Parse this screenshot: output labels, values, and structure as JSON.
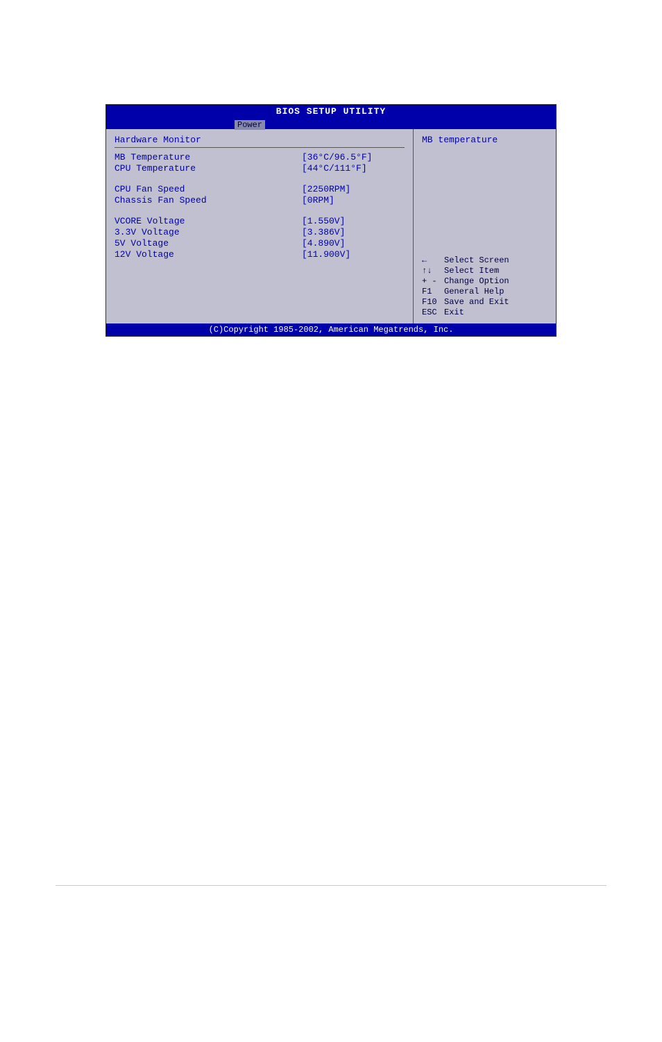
{
  "header": {
    "title": "BIOS SETUP UTILITY",
    "tab": "Power"
  },
  "leftPanel": {
    "sectionTitle": "Hardware Monitor",
    "rows": [
      {
        "label": "MB Temperature",
        "value": "[36°C/96.5°F]"
      },
      {
        "label": "CPU Temperature",
        "value": "[44°C/111°F]"
      }
    ],
    "rows2": [
      {
        "label": "CPU Fan Speed",
        "value": "[2250RPM]"
      },
      {
        "label": "Chassis Fan Speed",
        "value": "[0RPM]"
      }
    ],
    "rows3": [
      {
        "label": "VCORE Voltage",
        "value": "[1.550V]"
      },
      {
        "label": "3.3V Voltage",
        "value": "[3.386V]"
      },
      {
        "label": "5V Voltage",
        "value": "[4.890V]"
      },
      {
        "label": "12V Voltage",
        "value": "[11.900V]"
      }
    ]
  },
  "rightPanel": {
    "helpText": "MB temperature",
    "keys": [
      {
        "icon": "←",
        "label": "Select Screen"
      },
      {
        "icon": "↑↓",
        "label": "Select Item"
      },
      {
        "icon": "+ -",
        "label": "Change Option"
      },
      {
        "icon": "F1",
        "label": "General Help"
      },
      {
        "icon": "F10",
        "label": "Save and Exit"
      },
      {
        "icon": "ESC",
        "label": "Exit"
      }
    ]
  },
  "footer": {
    "copyright": "(C)Copyright 1985-2002, American Megatrends, Inc."
  }
}
